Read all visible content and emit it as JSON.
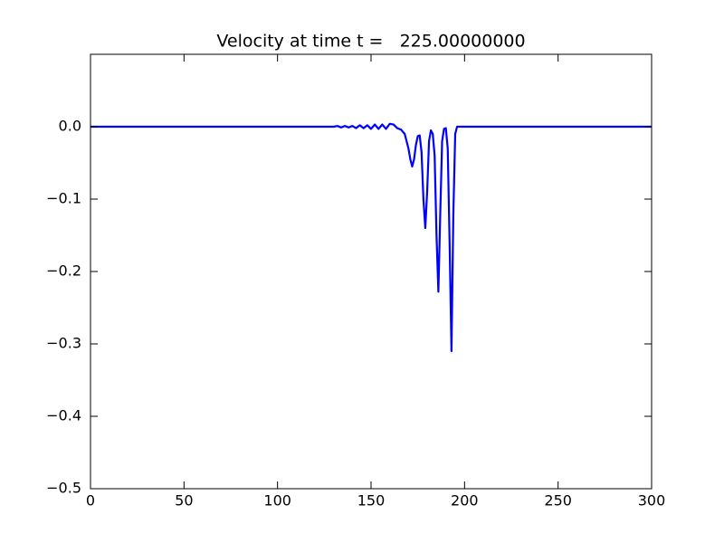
{
  "chart_data": {
    "type": "line",
    "title": "Velocity at time t =   225.00000000",
    "x": [
      0,
      100,
      125,
      130,
      132,
      134,
      136,
      138,
      140,
      142,
      144,
      146,
      148,
      150,
      152,
      154,
      156,
      158,
      160,
      162,
      164,
      166,
      168,
      170,
      171,
      172,
      173,
      174,
      175,
      176,
      177,
      178,
      179,
      180,
      181,
      182,
      183,
      184,
      185,
      186,
      187,
      188,
      189,
      190,
      191,
      192,
      193,
      194,
      195,
      196,
      200,
      300
    ],
    "series": [
      {
        "color": "#0000ff",
        "values": [
          0,
          0,
          0,
          0,
          0.001,
          -0.001,
          0.001,
          -0.001,
          0.001,
          -0.002,
          0.002,
          -0.002,
          0.002,
          -0.003,
          0.003,
          -0.003,
          0.003,
          -0.003,
          0.004,
          0.003,
          -0.002,
          -0.004,
          -0.01,
          -0.03,
          -0.045,
          -0.055,
          -0.045,
          -0.025,
          -0.013,
          -0.012,
          -0.035,
          -0.1,
          -0.14,
          -0.09,
          -0.02,
          -0.005,
          -0.01,
          -0.04,
          -0.15,
          -0.228,
          -0.12,
          -0.02,
          -0.003,
          -0.002,
          -0.03,
          -0.16,
          -0.31,
          -0.12,
          -0.01,
          0,
          0,
          0
        ]
      }
    ],
    "xlim": [
      0,
      300
    ],
    "xticks": [
      0,
      50,
      100,
      150,
      200,
      250,
      300
    ],
    "ylim": [
      -0.5,
      0.1
    ],
    "yticks": [
      {
        "value": -0.5,
        "label": "−0.5"
      },
      {
        "value": -0.4,
        "label": "−0.4"
      },
      {
        "value": -0.3,
        "label": "−0.3"
      },
      {
        "value": -0.2,
        "label": "−0.2"
      },
      {
        "value": -0.1,
        "label": "−0.1"
      },
      {
        "value": 0,
        "label": "0.0"
      }
    ]
  }
}
